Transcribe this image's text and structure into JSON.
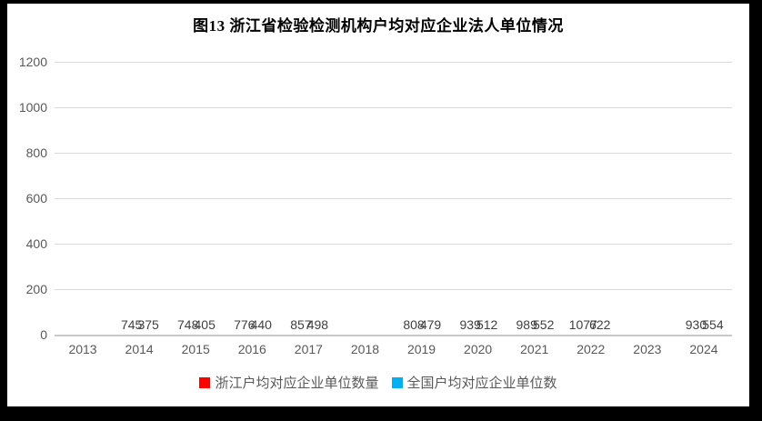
{
  "frame": {
    "border_color": "#000000",
    "background": "#ffffff"
  },
  "chart_data": {
    "type": "bar",
    "title": "图13  浙江省检验检测机构户均对应企业法人单位情况",
    "categories": [
      "2013",
      "2014",
      "2015",
      "2016",
      "2017",
      "2018",
      "2019",
      "2020",
      "2021",
      "2022",
      "2023",
      "2024"
    ],
    "series": [
      {
        "name": "浙江户均对应企业单位数量",
        "color": "#ff0000",
        "values": [
          null,
          745,
          748,
          776,
          857,
          null,
          808,
          939,
          989,
          1077,
          null,
          930
        ]
      },
      {
        "name": "全国户均对应企业单位数",
        "color": "#00b0f0",
        "values": [
          null,
          375,
          405,
          440,
          498,
          null,
          479,
          512,
          552,
          622,
          null,
          554
        ]
      }
    ],
    "xlabel": "",
    "ylabel": "",
    "ylim": [
      0,
      1200
    ],
    "ytick_step": 200,
    "grid": true,
    "legend_position": "bottom",
    "style": {
      "gridline_color": "#d9d9d9",
      "baseline_color": "#c9c9c9",
      "axis_text_color": "#595959",
      "data_label_color": "#404040",
      "title_color": "#000000"
    }
  }
}
